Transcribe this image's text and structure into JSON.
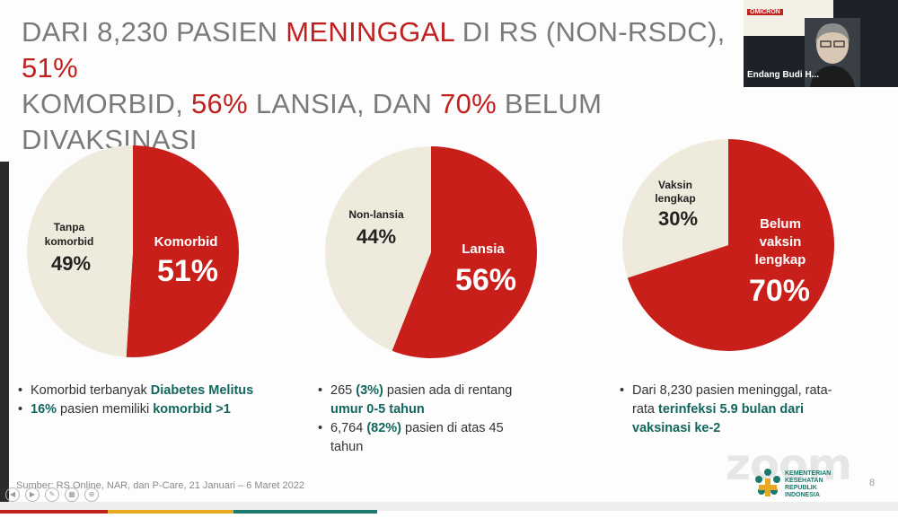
{
  "title": {
    "part1": "DARI 8,230 PASIEN ",
    "part2": "MENINGGAL",
    "part3": " DI RS (NON-RSDC), ",
    "part4": "51%",
    "part5": "KOMORBID, ",
    "part6": "56%",
    "part7": " LANSIA, DAN ",
    "part8": "70%",
    "part9": " BELUM DIVAKSINASI"
  },
  "colors": {
    "red": "#c91f1b",
    "cream": "#efebdc",
    "teal": "#12665e",
    "grey": "#7a7a7a"
  },
  "chart_data": [
    {
      "type": "pie",
      "labels": [
        "Komorbid",
        "Tanpa komorbid"
      ],
      "values": [
        51,
        49
      ],
      "label_text": {
        "a1": "Komorbid",
        "a_pct": "51%",
        "b1": "Tanpa",
        "b2": "komorbid",
        "b_pct": "49%"
      }
    },
    {
      "type": "pie",
      "labels": [
        "Lansia",
        "Non-lansia"
      ],
      "values": [
        56,
        44
      ],
      "label_text": {
        "a1": "Lansia",
        "a_pct": "56%",
        "b1": "Non-lansia",
        "b_pct": "44%"
      }
    },
    {
      "type": "pie",
      "labels": [
        "Belum vaksin lengkap",
        "Vaksin lengkap"
      ],
      "values": [
        70,
        30
      ],
      "label_text": {
        "a1": "Belum",
        "a2": "vaksin",
        "a3": "lengkap",
        "a_pct": "70%",
        "b1": "Vaksin",
        "b2": "lengkap",
        "b_pct": "30%"
      }
    }
  ],
  "notes1": {
    "l1a": "Komorbid terbanyak ",
    "l1b": "Diabetes Melitus",
    "l2a": "16%",
    "l2b": " pasien memiliki ",
    "l2c": "komorbid >1"
  },
  "notes2": {
    "l1a": "265 ",
    "l1b": "(3%)",
    "l1c": " pasien ada di rentang",
    "l1d": "umur 0-5 tahun",
    "l2a": "6,764 ",
    "l2b": "(82%)",
    "l2c": " pasien di atas 45",
    "l2d": "tahun"
  },
  "notes3": {
    "l1a": "Dari 8,230 pasien meninggal, rata-",
    "l1b": "rata ",
    "l1c": "terinfeksi 5.9 bulan dari",
    "l1d": "vaksinasi ke-2"
  },
  "source": "Sumber: RS Online, NAR, dan P-Care, 21 Januari – 6 Maret 2022",
  "page_number": "8",
  "video": {
    "participant_name": "Endang Budi H...",
    "poster_tag": "OMICRON"
  },
  "branding": {
    "zoom": "zoom",
    "kemenkes": [
      "KEMENTERIAN",
      "KESEHATAN",
      "REPUBLIK",
      "INDONESIA"
    ]
  }
}
